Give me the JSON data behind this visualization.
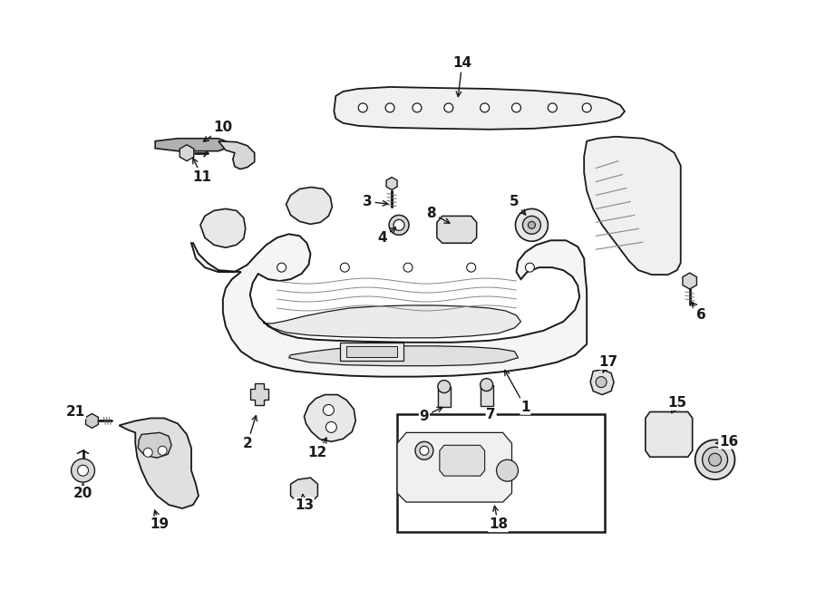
{
  "bg_color": "#ffffff",
  "line_color": "#1a1a1a",
  "fig_width": 9.0,
  "fig_height": 6.61
}
